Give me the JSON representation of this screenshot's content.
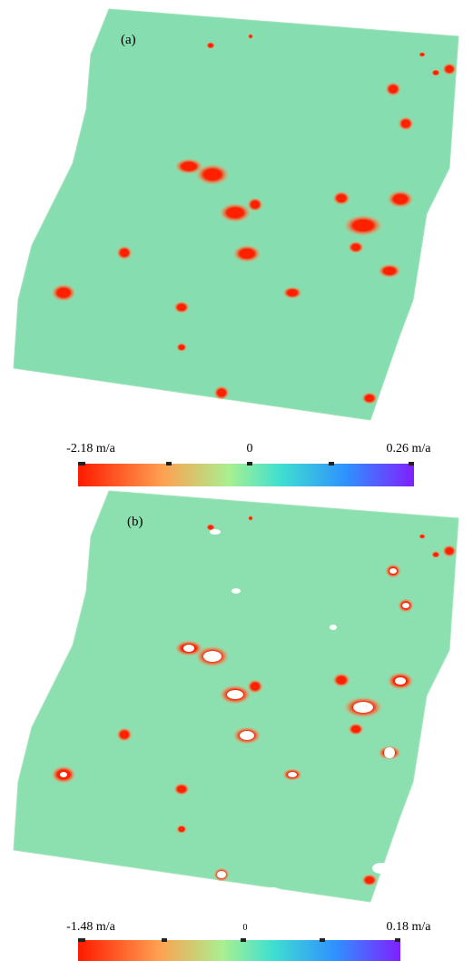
{
  "panels": [
    {
      "label": "(a)",
      "colorbar": {
        "min_label": "-2.18 m/a",
        "mid_label": "0",
        "max_label": "0.26 m/a"
      }
    },
    {
      "label": "(b)",
      "colorbar": {
        "min_label": "-1.48 m/a",
        "mid_label": "0",
        "max_label": "0.18 m/a"
      }
    }
  ]
}
